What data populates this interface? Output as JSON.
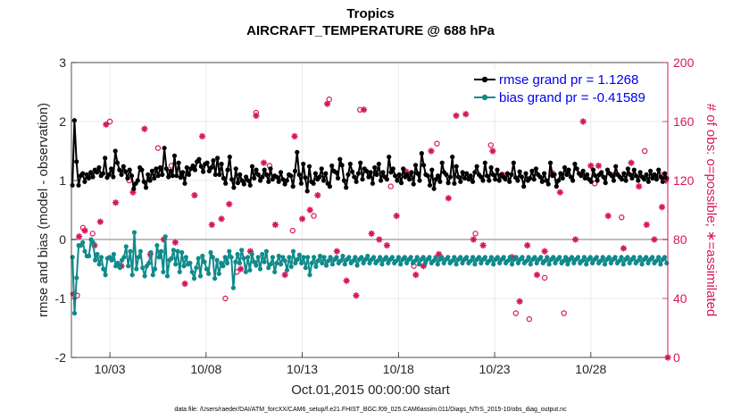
{
  "chart_data": {
    "type": "line",
    "title": "Tropics",
    "subtitle": "AIRCRAFT_TEMPERATURE @ 688 hPa",
    "xlabel": "Oct.01,2015 00:00:00 start",
    "ylabel": "rmse and bias (model - observation)",
    "y2label": "# of obs: o=possible; ∗=assimilated",
    "footnote": "data file: /Users/raeder/DAI/ATM_forcXX/CAM6_setup/f.e21.FHIST_BGC.f09_025.CAM6assim.011/Diags_NTrS_2015-10/obs_diag_output.nc",
    "xlim": [
      1.0,
      32.0
    ],
    "ylim": [
      -2,
      3
    ],
    "y2lim": [
      0,
      200
    ],
    "grid": true,
    "legend_position": "top-right",
    "x_ticks": [
      3,
      8,
      13,
      18,
      23,
      28
    ],
    "x_tick_labels": [
      "10/03",
      "10/08",
      "10/13",
      "10/18",
      "10/23",
      "10/28"
    ],
    "y_ticks": [
      -2,
      -1,
      0,
      1,
      2,
      3
    ],
    "y_tick_labels": [
      "-2",
      "-1",
      "0",
      "1",
      "2",
      "3"
    ],
    "y2_ticks": [
      0,
      40,
      80,
      120,
      160,
      200
    ],
    "y2_tick_labels": [
      "0",
      "40",
      "80",
      "120",
      "160",
      "200"
    ],
    "colors": {
      "rmse": "#000000",
      "bias": "#108a8a",
      "obs": "#d6175a",
      "legend_text": "#0000ee",
      "zero_line": "#bdbdbd"
    },
    "series": [
      {
        "name": "rmse grand pr = 1.1268",
        "axis": "left",
        "values": [
          0.92,
          2.02,
          1.32,
          0.92,
          1.08,
          1.12,
          0.98,
          1.1,
          1.04,
          1.14,
          1.06,
          1.18,
          1.14,
          1.22,
          1.08,
          1.12,
          1.38,
          1.05,
          1.1,
          1.2,
          1.06,
          1.5,
          1.3,
          1.18,
          1.1,
          1.24,
          1.15,
          1.04,
          1.18,
          1.08,
          0.86,
          0.95,
          1.0,
          1.22,
          1.18,
          0.98,
          0.88,
          1.1,
          1.0,
          1.16,
          1.04,
          1.2,
          1.08,
          1.22,
          1.1,
          1.55,
          1.2,
          1.06,
          1.16,
          1.08,
          1.42,
          1.08,
          1.3,
          1.05,
          1.14,
          0.95,
          1.22,
          1.1,
          1.2,
          1.25,
          1.18,
          1.32,
          1.36,
          1.24,
          1.15,
          1.28,
          1.3,
          1.16,
          1.22,
          1.34,
          1.1,
          1.38,
          1.1,
          1.28,
          1.04,
          0.95,
          1.18,
          1.4,
          1.02,
          0.88,
          1.2,
          0.96,
          1.1,
          1.0,
          0.94,
          1.06,
          1.0,
          0.92,
          1.24,
          1.04,
          1.18,
          1.1,
          1.0,
          1.06,
          1.18,
          1.1,
          0.98,
          1.2,
          1.02,
          1.08,
          1.06,
          0.98,
          1.14,
          1.02,
          0.94,
          1.0,
          1.1,
          1.08,
          0.9,
          1.16,
          1.48,
          1.1,
          0.95,
          1.28,
          1.05,
          0.82,
          1.24,
          0.98,
          0.95,
          1.12,
          1.02,
          1.06,
          1.2,
          1.0,
          1.12,
          0.95,
          0.9,
          1.25,
          1.16,
          1.14,
          1.04,
          1.36,
          1.26,
          1.0,
          0.88,
          1.1,
          1.28,
          1.15,
          1.06,
          0.98,
          1.12,
          1.3,
          1.02,
          1.2,
          1.16,
          1.06,
          1.14,
          0.95,
          1.22,
          1.1,
          1.28,
          1.0,
          1.14,
          1.06,
          1.02,
          1.4,
          1.14,
          1.2,
          1.08,
          1.0,
          1.1,
          0.96,
          1.2,
          1.06,
          1.1,
          1.02,
          1.14,
          0.94,
          1.26,
          1.12,
          1.0,
          1.46,
          1.26,
          1.1,
          1.08,
          0.92,
          1.18,
          0.86,
          1.02,
          1.08,
          0.98,
          1.3,
          1.14,
          1.1,
          0.96,
          1.06,
          1.4,
          0.95,
          1.24,
          1.06,
          0.98,
          1.14,
          1.04,
          1.12,
          1.02,
          1.08,
          0.98,
          1.14,
          1.24,
          1.1,
          1.06,
          1.0,
          1.3,
          1.08,
          1.0,
          1.22,
          1.1,
          1.02,
          1.18,
          1.0,
          1.1,
          1.06,
          1.02,
          1.12,
          0.98,
          1.1,
          1.3,
          1.05,
          1.0,
          1.15,
          1.06,
          0.9,
          1.12,
          1.0,
          1.04,
          1.16,
          1.02,
          1.2,
          1.1,
          1.06,
          0.98,
          1.12,
          1.0,
          0.94,
          1.3,
          1.08,
          1.1,
          0.9,
          1.0,
          1.12,
          1.04,
          1.22,
          1.1,
          1.18,
          1.06,
          1.0,
          1.28,
          1.2,
          1.12,
          1.08,
          1.16,
          1.04,
          1.1,
          1.02,
          0.98,
          1.18,
          1.08,
          1.0,
          1.1,
          1.14,
          1.06,
          0.96,
          1.18,
          1.12,
          1.08,
          1.0,
          1.24,
          1.1,
          1.06,
          1.02,
          1.12,
          1.0,
          1.2,
          1.1,
          1.04,
          1.18,
          1.08,
          1.0,
          1.14,
          1.06,
          1.02,
          1.1,
          0.98,
          1.16,
          1.04,
          1.1,
          1.02,
          1.18,
          1.06,
          0.98,
          1.12,
          1.04
        ]
      },
      {
        "name": "bias grand pr = -0.41589",
        "axis": "left",
        "values": [
          -0.3,
          -1.25,
          -0.65,
          -0.1,
          -0.1,
          -0.05,
          -0.2,
          -0.28,
          -0.28,
          0.0,
          -0.05,
          -0.35,
          -0.25,
          -0.42,
          -0.3,
          -0.5,
          -0.6,
          -0.32,
          -0.3,
          -0.35,
          -0.25,
          -0.45,
          -0.4,
          -0.48,
          -0.35,
          -0.3,
          -0.12,
          -0.45,
          -0.2,
          -0.6,
          0.12,
          -0.5,
          -0.3,
          -0.2,
          -0.48,
          -0.62,
          -0.45,
          -0.4,
          -0.22,
          -0.6,
          -0.5,
          -0.1,
          -0.3,
          -0.2,
          -0.55,
          0.05,
          -0.62,
          -0.35,
          -0.32,
          -0.18,
          -0.42,
          -0.2,
          -0.55,
          -0.22,
          -0.45,
          -0.3,
          -0.42,
          -0.4,
          -0.55,
          -0.66,
          -0.48,
          -0.32,
          -0.62,
          -0.28,
          -0.38,
          -0.5,
          -0.58,
          -0.22,
          -0.3,
          -0.66,
          -0.35,
          -0.58,
          -0.4,
          -0.45,
          -0.3,
          -0.4,
          -0.2,
          -0.3,
          -0.82,
          -0.38,
          -0.25,
          -0.4,
          -0.18,
          -0.32,
          -0.55,
          -0.3,
          -0.52,
          -0.25,
          -0.38,
          -0.44,
          -0.3,
          -0.5,
          -0.25,
          -0.38,
          -0.2,
          -0.48,
          -0.42,
          -0.3,
          -0.55,
          -0.4,
          -0.28,
          -0.42,
          -0.3,
          -0.36,
          -0.52,
          -0.3,
          -0.46,
          -0.2,
          -0.4,
          -0.34,
          -0.26,
          -0.4,
          -0.3,
          -0.48,
          -0.3,
          -0.6,
          -0.4,
          -0.3,
          -0.46,
          -0.36,
          -0.28,
          -0.4,
          -0.3,
          -0.44,
          -0.36,
          -0.3,
          -0.42,
          -0.34,
          -0.3,
          -0.4,
          -0.36,
          -0.28,
          -0.42,
          -0.34,
          -0.3,
          -0.4,
          -0.36,
          -0.3,
          -0.44,
          -0.34,
          -0.3,
          -0.4,
          -0.34,
          -0.28,
          -0.4,
          -0.34,
          -0.3,
          -0.4,
          -0.36,
          -0.3,
          -0.42,
          -0.34,
          -0.3,
          -0.4,
          -0.34,
          -0.3,
          -0.4,
          -0.36,
          -0.3,
          -0.42,
          -0.34,
          -0.3,
          -0.4,
          -0.34,
          -0.3,
          -0.4,
          -0.36,
          -0.3,
          -0.42,
          -0.34,
          -0.3,
          -0.4,
          -0.34,
          -0.3,
          -0.4,
          -0.36,
          -0.3,
          -0.42,
          -0.34,
          -0.3,
          -0.4,
          -0.34,
          -0.3,
          -0.4,
          -0.36,
          -0.3,
          -0.42,
          -0.34,
          -0.3,
          -0.4,
          -0.34,
          -0.3,
          -0.4,
          -0.36,
          -0.3,
          -0.42,
          -0.34,
          -0.3,
          -0.4,
          -0.34,
          -0.3,
          -0.4,
          -0.36,
          -0.3,
          -0.42,
          -0.34,
          -0.3,
          -0.4,
          -0.34,
          -0.3,
          -0.4,
          -0.36,
          -0.3,
          -0.42,
          -0.34,
          -0.3,
          -0.4,
          -0.34,
          -0.3,
          -0.4,
          -0.36,
          -0.3,
          -0.42,
          -0.34,
          -0.3,
          -0.4,
          -0.34,
          -0.3,
          -0.4,
          -0.36,
          -0.3,
          -0.42,
          -0.34,
          -0.3,
          -0.4,
          -0.34,
          -0.3,
          -0.4,
          -0.36,
          -0.3,
          -0.42,
          -0.34,
          -0.3,
          -0.4,
          -0.34,
          -0.3,
          -0.4,
          -0.36,
          -0.3,
          -0.42,
          -0.34,
          -0.3,
          -0.4,
          -0.34,
          -0.3,
          -0.4,
          -0.36,
          -0.3,
          -0.42,
          -0.34,
          -0.3,
          -0.4,
          -0.34,
          -0.3,
          -0.4,
          -0.36,
          -0.3,
          -0.42,
          -0.34,
          -0.3,
          -0.4,
          -0.34,
          -0.3,
          -0.4,
          -0.36,
          -0.3,
          -0.42,
          -0.34,
          -0.3,
          -0.4,
          -0.34,
          -0.3,
          -0.4,
          -0.36,
          -0.3,
          -0.42,
          -0.34,
          -0.3,
          -0.4
        ]
      }
    ],
    "obs_possible": [
      {
        "x": 1.3,
        "y": 42
      },
      {
        "x": 1.6,
        "y": 88
      },
      {
        "x": 2.1,
        "y": 84
      },
      {
        "x": 3.0,
        "y": 160
      },
      {
        "x": 4.0,
        "y": 120
      },
      {
        "x": 5.5,
        "y": 142
      },
      {
        "x": 6.2,
        "y": 130
      },
      {
        "x": 9.0,
        "y": 40
      },
      {
        "x": 9.6,
        "y": 58
      },
      {
        "x": 10.6,
        "y": 166
      },
      {
        "x": 11.3,
        "y": 130
      },
      {
        "x": 12.5,
        "y": 86
      },
      {
        "x": 13.6,
        "y": 96
      },
      {
        "x": 14.4,
        "y": 175
      },
      {
        "x": 16.0,
        "y": 168
      },
      {
        "x": 17.6,
        "y": 116
      },
      {
        "x": 18.8,
        "y": 62
      },
      {
        "x": 20.0,
        "y": 145
      },
      {
        "x": 22.0,
        "y": 84
      },
      {
        "x": 22.8,
        "y": 144
      },
      {
        "x": 24.1,
        "y": 30
      },
      {
        "x": 24.8,
        "y": 26
      },
      {
        "x": 25.6,
        "y": 54
      },
      {
        "x": 26.6,
        "y": 30
      },
      {
        "x": 28.2,
        "y": 118
      },
      {
        "x": 29.6,
        "y": 95
      },
      {
        "x": 30.8,
        "y": 140
      },
      {
        "x": 31.6,
        "y": 124
      }
    ],
    "obs_assimilated": [
      {
        "x": 1.1,
        "y": 43
      },
      {
        "x": 1.4,
        "y": 82
      },
      {
        "x": 1.7,
        "y": 86
      },
      {
        "x": 2.2,
        "y": 76
      },
      {
        "x": 2.5,
        "y": 92
      },
      {
        "x": 2.8,
        "y": 158
      },
      {
        "x": 3.3,
        "y": 105
      },
      {
        "x": 3.6,
        "y": 62
      },
      {
        "x": 4.2,
        "y": 112
      },
      {
        "x": 4.8,
        "y": 155
      },
      {
        "x": 5.1,
        "y": 70
      },
      {
        "x": 5.8,
        "y": 80
      },
      {
        "x": 6.4,
        "y": 78
      },
      {
        "x": 6.9,
        "y": 50
      },
      {
        "x": 7.4,
        "y": 110
      },
      {
        "x": 7.8,
        "y": 150
      },
      {
        "x": 8.3,
        "y": 90
      },
      {
        "x": 8.8,
        "y": 94
      },
      {
        "x": 9.2,
        "y": 104
      },
      {
        "x": 9.8,
        "y": 60
      },
      {
        "x": 10.3,
        "y": 72
      },
      {
        "x": 10.6,
        "y": 164
      },
      {
        "x": 11.0,
        "y": 132
      },
      {
        "x": 11.6,
        "y": 90
      },
      {
        "x": 12.1,
        "y": 56
      },
      {
        "x": 12.6,
        "y": 150
      },
      {
        "x": 13.0,
        "y": 94
      },
      {
        "x": 13.4,
        "y": 100
      },
      {
        "x": 13.8,
        "y": 110
      },
      {
        "x": 14.3,
        "y": 172
      },
      {
        "x": 14.8,
        "y": 72
      },
      {
        "x": 15.3,
        "y": 52
      },
      {
        "x": 15.8,
        "y": 42
      },
      {
        "x": 16.2,
        "y": 168
      },
      {
        "x": 16.6,
        "y": 84
      },
      {
        "x": 17.0,
        "y": 80
      },
      {
        "x": 17.4,
        "y": 76
      },
      {
        "x": 17.9,
        "y": 96
      },
      {
        "x": 18.4,
        "y": 126
      },
      {
        "x": 18.9,
        "y": 56
      },
      {
        "x": 19.3,
        "y": 62
      },
      {
        "x": 19.7,
        "y": 140
      },
      {
        "x": 20.1,
        "y": 70
      },
      {
        "x": 20.6,
        "y": 108
      },
      {
        "x": 21.0,
        "y": 164
      },
      {
        "x": 21.5,
        "y": 165
      },
      {
        "x": 21.9,
        "y": 80
      },
      {
        "x": 22.4,
        "y": 76
      },
      {
        "x": 22.9,
        "y": 140
      },
      {
        "x": 23.4,
        "y": 124
      },
      {
        "x": 23.9,
        "y": 68
      },
      {
        "x": 24.3,
        "y": 38
      },
      {
        "x": 24.7,
        "y": 76
      },
      {
        "x": 25.2,
        "y": 56
      },
      {
        "x": 25.6,
        "y": 72
      },
      {
        "x": 26.0,
        "y": 125
      },
      {
        "x": 26.4,
        "y": 112
      },
      {
        "x": 26.8,
        "y": 66
      },
      {
        "x": 27.2,
        "y": 80
      },
      {
        "x": 27.6,
        "y": 160
      },
      {
        "x": 28.0,
        "y": 130
      },
      {
        "x": 28.4,
        "y": 130
      },
      {
        "x": 28.9,
        "y": 96
      },
      {
        "x": 29.2,
        "y": 124
      },
      {
        "x": 29.7,
        "y": 74
      },
      {
        "x": 30.1,
        "y": 132
      },
      {
        "x": 30.5,
        "y": 116
      },
      {
        "x": 30.9,
        "y": 90
      },
      {
        "x": 31.3,
        "y": 80
      },
      {
        "x": 31.7,
        "y": 102
      },
      {
        "x": 31.9,
        "y": 120
      },
      {
        "x": 32.0,
        "y": 0
      }
    ]
  }
}
